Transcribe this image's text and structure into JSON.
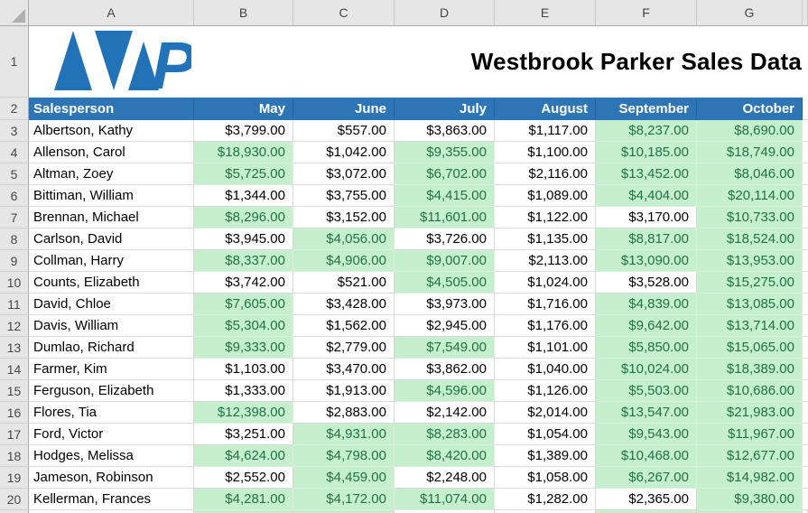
{
  "sheet": {
    "title": "Westbrook Parker Sales Data",
    "logo": {
      "name": "westbrook-parker-logo",
      "letter": "P"
    },
    "column_letters": [
      "A",
      "B",
      "C",
      "D",
      "E",
      "F",
      "G"
    ],
    "row1_number": "1",
    "row2_number": "2",
    "header": {
      "columns": [
        "Salesperson",
        "May",
        "June",
        "July",
        "August",
        "September",
        "October"
      ]
    },
    "rows": [
      {
        "row": "3",
        "name": "Albertson, Kathy",
        "values": [
          "$3,799.00",
          "$557.00",
          "$3,863.00",
          "$1,117.00",
          "$8,237.00",
          "$8,690.00"
        ]
      },
      {
        "row": "4",
        "name": "Allenson, Carol",
        "values": [
          "$18,930.00",
          "$1,042.00",
          "$9,355.00",
          "$1,100.00",
          "$10,185.00",
          "$18,749.00"
        ]
      },
      {
        "row": "5",
        "name": "Altman, Zoey",
        "values": [
          "$5,725.00",
          "$3,072.00",
          "$6,702.00",
          "$2,116.00",
          "$13,452.00",
          "$8,046.00"
        ]
      },
      {
        "row": "6",
        "name": "Bittiman, William",
        "values": [
          "$1,344.00",
          "$3,755.00",
          "$4,415.00",
          "$1,089.00",
          "$4,404.00",
          "$20,114.00"
        ]
      },
      {
        "row": "7",
        "name": "Brennan, Michael",
        "values": [
          "$8,296.00",
          "$3,152.00",
          "$11,601.00",
          "$1,122.00",
          "$3,170.00",
          "$10,733.00"
        ]
      },
      {
        "row": "8",
        "name": "Carlson, David",
        "values": [
          "$3,945.00",
          "$4,056.00",
          "$3,726.00",
          "$1,135.00",
          "$8,817.00",
          "$18,524.00"
        ]
      },
      {
        "row": "9",
        "name": "Collman, Harry",
        "values": [
          "$8,337.00",
          "$4,906.00",
          "$9,007.00",
          "$2,113.00",
          "$13,090.00",
          "$13,953.00"
        ]
      },
      {
        "row": "10",
        "name": "Counts, Elizabeth",
        "values": [
          "$3,742.00",
          "$521.00",
          "$4,505.00",
          "$1,024.00",
          "$3,528.00",
          "$15,275.00"
        ]
      },
      {
        "row": "11",
        "name": "David, Chloe",
        "values": [
          "$7,605.00",
          "$3,428.00",
          "$3,973.00",
          "$1,716.00",
          "$4,839.00",
          "$13,085.00"
        ]
      },
      {
        "row": "12",
        "name": "Davis, William",
        "values": [
          "$5,304.00",
          "$1,562.00",
          "$2,945.00",
          "$1,176.00",
          "$9,642.00",
          "$13,714.00"
        ]
      },
      {
        "row": "13",
        "name": "Dumlao, Richard",
        "values": [
          "$9,333.00",
          "$2,779.00",
          "$7,549.00",
          "$1,101.00",
          "$5,850.00",
          "$15,065.00"
        ]
      },
      {
        "row": "14",
        "name": "Farmer, Kim",
        "values": [
          "$1,103.00",
          "$3,470.00",
          "$3,862.00",
          "$1,040.00",
          "$10,024.00",
          "$18,389.00"
        ]
      },
      {
        "row": "15",
        "name": "Ferguson, Elizabeth",
        "values": [
          "$1,333.00",
          "$1,913.00",
          "$4,596.00",
          "$1,126.00",
          "$5,503.00",
          "$10,686.00"
        ]
      },
      {
        "row": "16",
        "name": "Flores, Tia",
        "values": [
          "$12,398.00",
          "$2,883.00",
          "$2,142.00",
          "$2,014.00",
          "$13,547.00",
          "$21,983.00"
        ]
      },
      {
        "row": "17",
        "name": "Ford, Victor",
        "values": [
          "$3,251.00",
          "$4,931.00",
          "$8,283.00",
          "$1,054.00",
          "$9,543.00",
          "$11,967.00"
        ]
      },
      {
        "row": "18",
        "name": "Hodges, Melissa",
        "values": [
          "$4,624.00",
          "$4,798.00",
          "$8,420.00",
          "$1,389.00",
          "$10,468.00",
          "$12,677.00"
        ]
      },
      {
        "row": "19",
        "name": "Jameson, Robinson",
        "values": [
          "$2,552.00",
          "$4,459.00",
          "$2,248.00",
          "$1,058.00",
          "$6,267.00",
          "$14,982.00"
        ]
      },
      {
        "row": "20",
        "name": "Kellerman, Frances",
        "values": [
          "$4,281.00",
          "$4,172.00",
          "$11,074.00",
          "$1,282.00",
          "$2,365.00",
          "$9,380.00"
        ]
      }
    ],
    "highlight_rule": {
      "threshold": 4000
    },
    "partial_row_fills": [
      "white",
      "green",
      "green",
      "white",
      "white",
      "green",
      "green"
    ],
    "colors": {
      "header_blue": "#2E75B6",
      "logo_blue": "#2272B8",
      "green_fill": "#C6EFCE",
      "green_text": "#1F7246",
      "gridline": "#D9D9D9",
      "band_bg": "#E6E6E6",
      "band_border": "#ABABAB"
    }
  }
}
